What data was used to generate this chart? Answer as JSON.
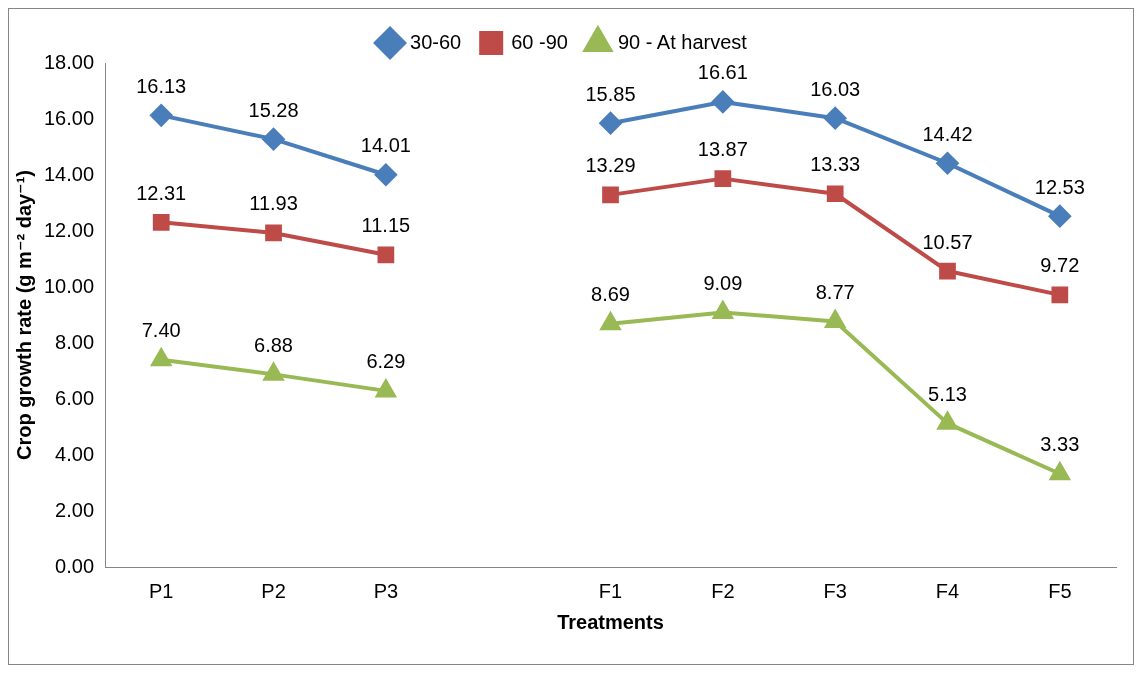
{
  "chart_data": {
    "type": "line",
    "xlabel": "Treatments",
    "ylabel": "Crop growth rate (g m⁻² day⁻¹)",
    "categories": [
      "P1",
      "P2",
      "P3",
      null,
      "F1",
      "F2",
      "F3",
      "F4",
      "F5"
    ],
    "series": [
      {
        "name": "30-60",
        "color": "#4a7ebb",
        "marker": "diamond",
        "values": [
          16.13,
          15.28,
          14.01,
          null,
          15.85,
          16.61,
          16.03,
          14.42,
          12.53
        ],
        "value_labels": [
          "16.13",
          "15.28",
          "14.01",
          null,
          "15.85",
          "16.61",
          "16.03",
          "14.42",
          "12.53"
        ]
      },
      {
        "name": "60 -90",
        "color": "#be4b48",
        "marker": "square",
        "values": [
          12.31,
          11.93,
          11.15,
          null,
          13.29,
          13.87,
          13.33,
          10.57,
          9.72
        ],
        "value_labels": [
          "12.31",
          "11.93",
          "11.15",
          null,
          "13.29",
          "13.87",
          "13.33",
          "10.57",
          "9.72"
        ]
      },
      {
        "name": "90 - At harvest",
        "color": "#98b954",
        "marker": "triangle",
        "values": [
          7.4,
          6.88,
          6.29,
          null,
          8.69,
          9.09,
          8.77,
          5.13,
          3.33
        ],
        "value_labels": [
          "7.40",
          "6.88",
          "6.29",
          null,
          "8.69",
          "9.09",
          "8.77",
          "5.13",
          "3.33"
        ]
      }
    ],
    "ylim": [
      0,
      18
    ],
    "yticks": [
      {
        "value": 0,
        "label": "0.00"
      },
      {
        "value": 2,
        "label": "2.00"
      },
      {
        "value": 4,
        "label": "4.00"
      },
      {
        "value": 6,
        "label": "6.00"
      },
      {
        "value": 8,
        "label": "8.00"
      },
      {
        "value": 10,
        "label": "10.00"
      },
      {
        "value": 12,
        "label": "12.00"
      },
      {
        "value": 14,
        "label": "14.00"
      },
      {
        "value": 16,
        "label": "16.00"
      },
      {
        "value": 18,
        "label": "18.00"
      }
    ],
    "grid": false,
    "legend": "top",
    "line_style": "solid"
  }
}
